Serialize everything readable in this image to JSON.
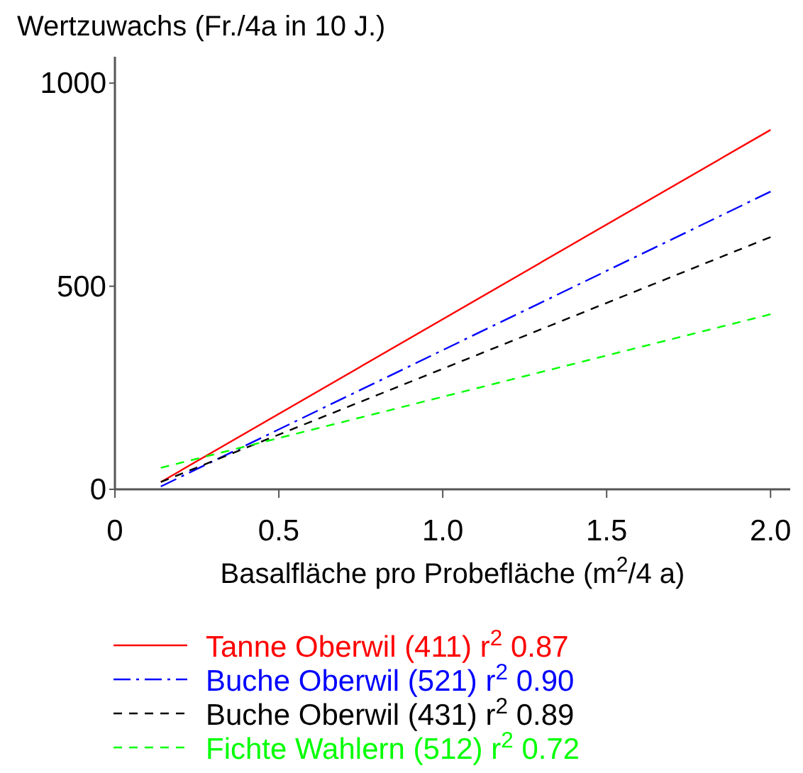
{
  "chart_data": {
    "type": "line",
    "ylabel": "Wertzuwachs (Fr./4a in 10 J.)",
    "xlabel": "Basalfläche pro Probefläche (m$^{2}$/4 a)",
    "xlim": [
      0,
      2.06
    ],
    "ylim": [
      0,
      1065
    ],
    "xticks": [
      0,
      0.5,
      {
        "value": 1,
        "label": "1.0"
      },
      1.5,
      {
        "value": 2,
        "label": "2.0"
      }
    ],
    "yticks": [
      0,
      500,
      1000
    ],
    "x": [
      0.14,
      2.0
    ],
    "grid": false,
    "legend": "bottom",
    "marker": "none",
    "series": [
      {
        "name": "Tanne Oberwil (411) r$^{2}$ 0.87",
        "color": "#ff0000",
        "line_style": "solid",
        "values": [
          18,
          885
        ]
      },
      {
        "name": "Buche Oberwil (521) r$^{2}$ 0.90",
        "color": "#0000ff",
        "line_style": "dashdot",
        "values": [
          7,
          733
        ]
      },
      {
        "name": "Buche Oberwil (431) r$^{2}$ 0.89",
        "color": "#000000",
        "line_style": "dashed",
        "values": [
          18,
          621
        ]
      },
      {
        "name": "Fichte Wahlern (512) r$^{2}$ 0.72",
        "color": "#00ff00",
        "line_style": "dashed",
        "values": [
          53,
          431
        ]
      }
    ]
  }
}
